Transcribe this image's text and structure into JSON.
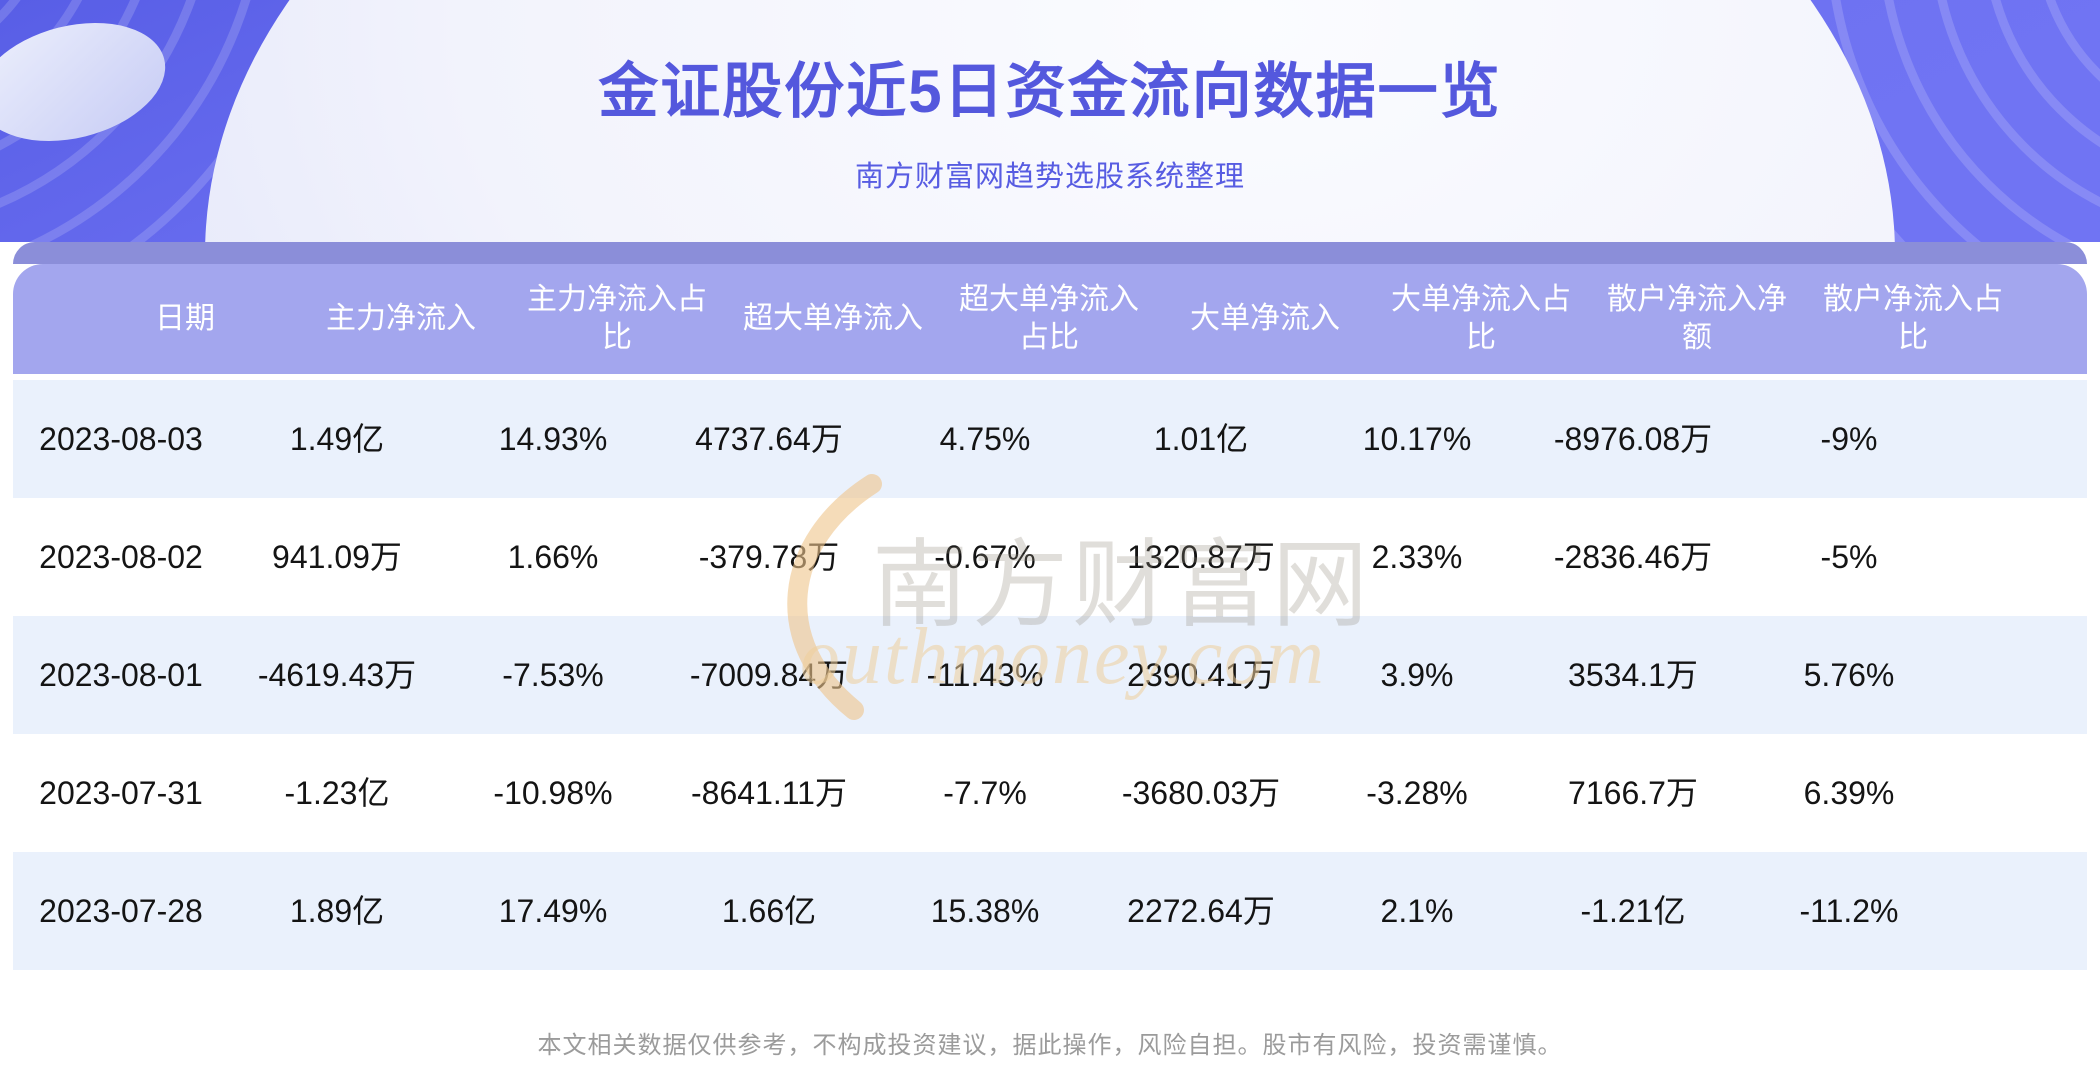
{
  "header": {
    "title": "金证股份近5日资金流向数据一览",
    "subtitle": "南方财富网趋势选股系统整理"
  },
  "table": {
    "columns": [
      "日期",
      "主力净流入",
      "主力净流入占比",
      "超大单净流入",
      "超大单净流入占比",
      "大单净流入",
      "大单净流入占比",
      "散户净流入净额",
      "散户净流入占比"
    ],
    "rows": [
      [
        "2023-08-03",
        "1.49亿",
        "14.93%",
        "4737.64万",
        "4.75%",
        "1.01亿",
        "10.17%",
        "-8976.08万",
        "-9%"
      ],
      [
        "2023-08-02",
        "941.09万",
        "1.66%",
        "-379.78万",
        "-0.67%",
        "1320.87万",
        "2.33%",
        "-2836.46万",
        "-5%"
      ],
      [
        "2023-08-01",
        "-4619.43万",
        "-7.53%",
        "-7009.84万",
        "-11.43%",
        "2390.41万",
        "3.9%",
        "3534.1万",
        "5.76%"
      ],
      [
        "2023-07-31",
        "-1.23亿",
        "-10.98%",
        "-8641.11万",
        "-7.7%",
        "-3680.03万",
        "-3.28%",
        "7166.7万",
        "6.39%"
      ],
      [
        "2023-07-28",
        "1.89亿",
        "17.49%",
        "1.66亿",
        "15.38%",
        "2272.64万",
        "2.1%",
        "-1.21亿",
        "-11.2%"
      ]
    ]
  },
  "chart_data": {
    "type": "table",
    "title": "金证股份近5日资金流向数据一览",
    "subtitle": "南方财富网趋势选股系统整理",
    "columns": [
      "日期",
      "主力净流入",
      "主力净流入占比",
      "超大单净流入",
      "超大单净流入占比",
      "大单净流入",
      "大单净流入占比",
      "散户净流入净额",
      "散户净流入占比"
    ],
    "rows": [
      [
        "2023-08-03",
        "1.49亿",
        "14.93%",
        "4737.64万",
        "4.75%",
        "1.01亿",
        "10.17%",
        "-8976.08万",
        "-9%"
      ],
      [
        "2023-08-02",
        "941.09万",
        "1.66%",
        "-379.78万",
        "-0.67%",
        "1320.87万",
        "2.33%",
        "-2836.46万",
        "-5%"
      ],
      [
        "2023-08-01",
        "-4619.43万",
        "-7.53%",
        "-7009.84万",
        "-11.43%",
        "2390.41万",
        "3.9%",
        "3534.1万",
        "5.76%"
      ],
      [
        "2023-07-31",
        "-1.23亿",
        "-10.98%",
        "-8641.11万",
        "-7.7%",
        "-3680.03万",
        "-3.28%",
        "7166.7万",
        "6.39%"
      ],
      [
        "2023-07-28",
        "1.89亿",
        "17.49%",
        "1.66亿",
        "15.38%",
        "2272.64万",
        "2.1%",
        "-1.21亿",
        "-11.2%"
      ]
    ]
  },
  "watermark": {
    "brand": "南方财富网",
    "script": "outhmoney.com"
  },
  "footer": {
    "disclaimer": "本文相关数据仅供参考，不构成投资建议，据此操作，风险自担。股市有风险，投资需谨慎。"
  },
  "colors": {
    "banner_purple": "#6b6ff0",
    "title_text": "#5458dd",
    "header_back_strip": "#8b8ed9",
    "table_header_bg": "#a3a6ee",
    "row_alt_bg": "#eaf1fc",
    "row_plain_bg": "#ffffff",
    "body_text": "#141414",
    "footer_text": "#9b9b9b",
    "watermark_tan": "#efcf9c"
  }
}
